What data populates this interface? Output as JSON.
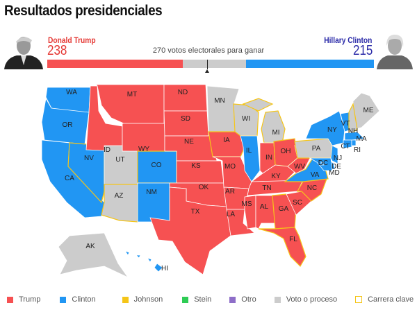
{
  "title": "Resultados presidenciales",
  "candidates": {
    "left": {
      "name": "Donald Trump",
      "votes": "238",
      "electoral": 238,
      "color": "#f65152"
    },
    "right": {
      "name": "Hillary Clinton",
      "votes": "215",
      "electoral": 215,
      "color": "#2196f3"
    }
  },
  "threshold": {
    "label": "270 votos electorales para ganar",
    "value": 270,
    "total": 538
  },
  "colors": {
    "trump": "#f65152",
    "clinton": "#2196f3",
    "pending": "#cccccc",
    "key": "#f5c518"
  },
  "states": [
    {
      "id": "WA",
      "w": "clinton"
    },
    {
      "id": "OR",
      "w": "clinton"
    },
    {
      "id": "CA",
      "w": "clinton"
    },
    {
      "id": "NV",
      "w": "clinton",
      "key": true
    },
    {
      "id": "ID",
      "w": "trump"
    },
    {
      "id": "MT",
      "w": "trump"
    },
    {
      "id": "WY",
      "w": "trump"
    },
    {
      "id": "UT",
      "w": "pending"
    },
    {
      "id": "CO",
      "w": "clinton",
      "key": true
    },
    {
      "id": "AZ",
      "w": "pending",
      "key": true
    },
    {
      "id": "NM",
      "w": "clinton"
    },
    {
      "id": "ND",
      "w": "trump"
    },
    {
      "id": "SD",
      "w": "trump"
    },
    {
      "id": "NE",
      "w": "trump"
    },
    {
      "id": "KS",
      "w": "trump"
    },
    {
      "id": "OK",
      "w": "trump"
    },
    {
      "id": "TX",
      "w": "trump"
    },
    {
      "id": "MN",
      "w": "pending"
    },
    {
      "id": "IA",
      "w": "trump",
      "key": true
    },
    {
      "id": "MO",
      "w": "trump"
    },
    {
      "id": "AR",
      "w": "trump"
    },
    {
      "id": "LA",
      "w": "trump"
    },
    {
      "id": "WI",
      "w": "pending",
      "key": true
    },
    {
      "id": "IL",
      "w": "clinton"
    },
    {
      "id": "MI",
      "w": "pending",
      "key": true
    },
    {
      "id": "IN",
      "w": "trump"
    },
    {
      "id": "OH",
      "w": "trump",
      "key": true
    },
    {
      "id": "KY",
      "w": "trump"
    },
    {
      "id": "TN",
      "w": "trump"
    },
    {
      "id": "MS",
      "w": "trump"
    },
    {
      "id": "AL",
      "w": "trump"
    },
    {
      "id": "GA",
      "w": "trump",
      "key": true
    },
    {
      "id": "FL",
      "w": "trump",
      "key": true
    },
    {
      "id": "SC",
      "w": "trump"
    },
    {
      "id": "NC",
      "w": "trump",
      "key": true
    },
    {
      "id": "VA",
      "w": "clinton",
      "key": true
    },
    {
      "id": "WV",
      "w": "trump"
    },
    {
      "id": "PA",
      "w": "pending",
      "key": true
    },
    {
      "id": "NY",
      "w": "clinton"
    },
    {
      "id": "ME",
      "w": "pending"
    },
    {
      "id": "VT",
      "w": "clinton"
    },
    {
      "id": "NH",
      "w": "pending",
      "key": true
    },
    {
      "id": "MA",
      "w": "clinton"
    },
    {
      "id": "CT",
      "w": "clinton"
    },
    {
      "id": "RI",
      "w": "clinton"
    },
    {
      "id": "NJ",
      "w": "clinton"
    },
    {
      "id": "DE",
      "w": "clinton"
    },
    {
      "id": "MD",
      "w": "clinton"
    },
    {
      "id": "DC",
      "w": "clinton"
    },
    {
      "id": "AK",
      "w": "pending"
    },
    {
      "id": "HI",
      "w": "clinton"
    }
  ],
  "legend": [
    {
      "label": "Trump",
      "color": "#f65152"
    },
    {
      "label": "Clinton",
      "color": "#2196f3"
    },
    {
      "label": "Johnson",
      "color": "#f5c518"
    },
    {
      "label": "Stein",
      "color": "#2ecc55"
    },
    {
      "label": "Otro",
      "color": "#8e6ec8"
    },
    {
      "label": "Voto o proceso",
      "color": "#cccccc"
    },
    {
      "label": "Carrera clave",
      "color": "#f5c518",
      "outline": true
    }
  ]
}
